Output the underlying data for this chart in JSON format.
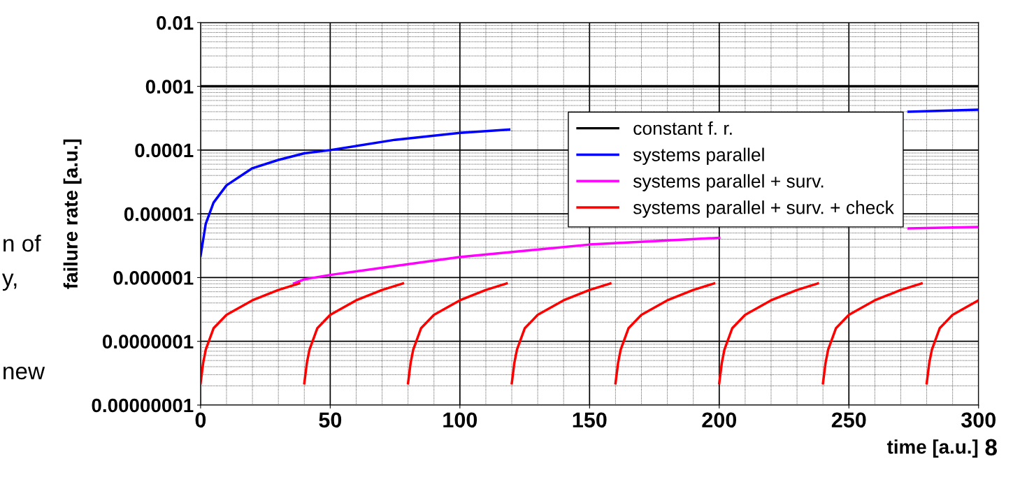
{
  "chart_data": {
    "type": "line",
    "xlabel": "time [a.u.]",
    "ylabel": "failure rate [a.u.]",
    "log": "y",
    "grid": true,
    "legend": "top right",
    "line_style": "solid",
    "marker": "none",
    "xlim": [
      0,
      300
    ],
    "xticks": [
      0,
      50,
      100,
      150,
      200,
      250,
      300
    ],
    "ylim": [
      1e-08,
      0.01
    ],
    "yticks": [
      {
        "value": 1e-08,
        "label": "0.00000001"
      },
      {
        "value": 1e-07,
        "label": "0.0000001"
      },
      {
        "value": 1e-06,
        "label": "0.000001"
      },
      {
        "value": 1e-05,
        "label": "0.00001"
      },
      {
        "value": 0.0001,
        "label": "0.0001"
      },
      {
        "value": 0.001,
        "label": "0.001"
      },
      {
        "value": 0.01,
        "label": "0.01"
      }
    ],
    "series": [
      {
        "name": "constant f. r.",
        "color": "#000000",
        "x": [
          0,
          300
        ],
        "values": [
          0.001,
          0.001
        ]
      },
      {
        "name": "systems parallel",
        "color": "#0000ff",
        "x": [
          0,
          2,
          5,
          10,
          20,
          30,
          40,
          50,
          75,
          100,
          119,
          200,
          273,
          300
        ],
        "values": [
          2.2e-06,
          7e-06,
          1.5e-05,
          2.8e-05,
          5.2e-05,
          7e-05,
          8.9e-05,
          0.0001,
          0.000145,
          0.000186,
          0.00021,
          null,
          0.0004,
          0.00043
        ]
      },
      {
        "name": "systems parallel + surv.",
        "color": "#ff00ff",
        "x": [
          36,
          40,
          50,
          100,
          150,
          200,
          240,
          273,
          300
        ],
        "values": [
          8.1e-07,
          9.4e-07,
          1.1e-06,
          2.1e-06,
          3.3e-06,
          4.2e-06,
          null,
          5.9e-06,
          6.2e-06
        ]
      },
      {
        "name": "systems parallel + surv. + check",
        "color": "#ff0000",
        "x": [
          0,
          1,
          2,
          5,
          10,
          20,
          30,
          38,
          39,
          40,
          41,
          42,
          45,
          50,
          60,
          70,
          78,
          79,
          80,
          81,
          82,
          85,
          90,
          100,
          110,
          118,
          119,
          120,
          121,
          122,
          125,
          130,
          140,
          150,
          158,
          159,
          160,
          161,
          162,
          165,
          170,
          180,
          190,
          198,
          199,
          200,
          201,
          202,
          205,
          210,
          220,
          230,
          238,
          239,
          240,
          241,
          242,
          245,
          250,
          260,
          270,
          278,
          279,
          280,
          281,
          282,
          285,
          290,
          300
        ],
        "values": [
          2.2e-08,
          4.6e-08,
          7.4e-08,
          1.6e-07,
          2.6e-07,
          4.4e-07,
          6.4e-07,
          8.1e-07,
          null,
          2.2e-08,
          4.6e-08,
          7.4e-08,
          1.6e-07,
          2.6e-07,
          4.4e-07,
          6.4e-07,
          8.1e-07,
          null,
          2.2e-08,
          4.6e-08,
          7.4e-08,
          1.6e-07,
          2.6e-07,
          4.4e-07,
          6.4e-07,
          8.1e-07,
          null,
          2.2e-08,
          4.6e-08,
          7.4e-08,
          1.6e-07,
          2.6e-07,
          4.4e-07,
          6.4e-07,
          8.1e-07,
          null,
          2.2e-08,
          4.6e-08,
          7.4e-08,
          1.6e-07,
          2.6e-07,
          4.4e-07,
          6.4e-07,
          8.1e-07,
          null,
          2.2e-08,
          4.6e-08,
          7.4e-08,
          1.6e-07,
          2.6e-07,
          4.4e-07,
          6.4e-07,
          8.1e-07,
          null,
          2.2e-08,
          4.6e-08,
          7.4e-08,
          1.6e-07,
          2.6e-07,
          4.4e-07,
          6.4e-07,
          8.1e-07,
          null,
          2.2e-08,
          4.6e-08,
          7.4e-08,
          1.6e-07,
          2.6e-07,
          4.4e-07
        ]
      }
    ],
    "annotations": [
      "n of",
      "y,",
      "new",
      "8"
    ]
  }
}
